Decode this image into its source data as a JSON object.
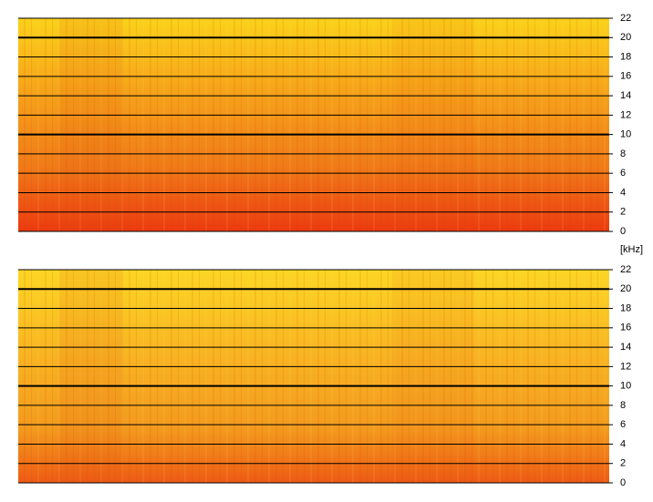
{
  "chart_data": [
    {
      "type": "spectrogram",
      "ylabel": "[kHz]",
      "ylim": [
        0,
        22
      ],
      "yticks": [
        0,
        2,
        4,
        6,
        8,
        10,
        12,
        14,
        16,
        18,
        20,
        22
      ]
    },
    {
      "type": "spectrogram",
      "ylim": [
        0,
        22
      ],
      "yticks": [
        0,
        2,
        4,
        6,
        8,
        10,
        12,
        14,
        16,
        18,
        20,
        22
      ]
    }
  ]
}
